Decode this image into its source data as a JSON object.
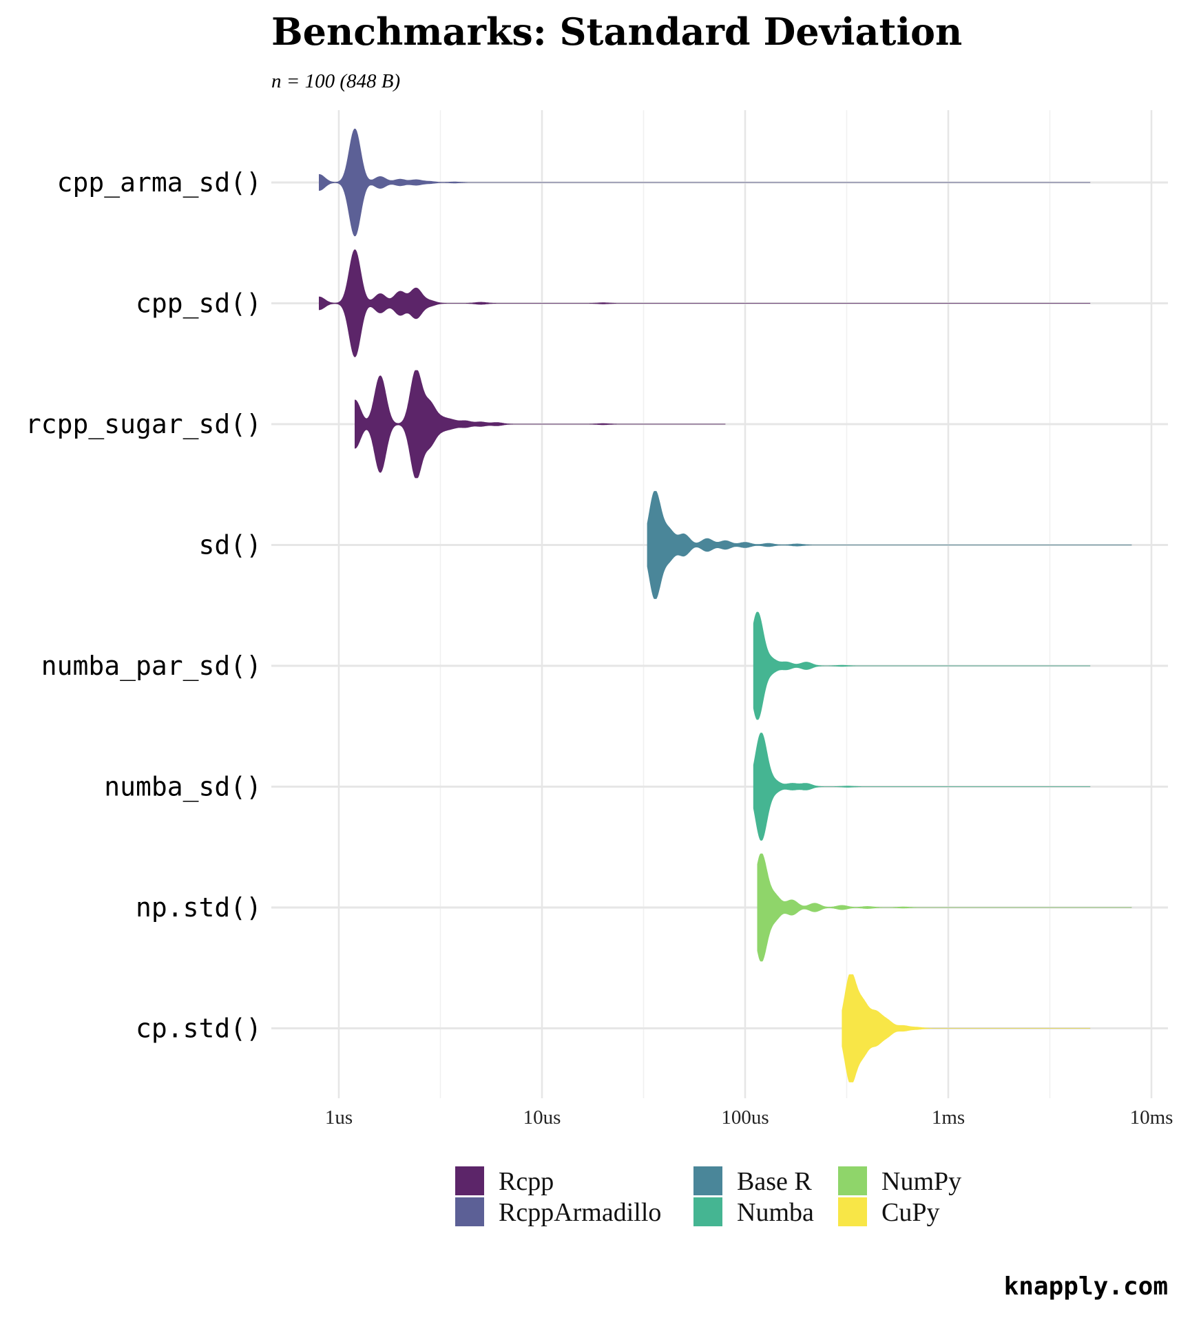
{
  "chart_data": {
    "type": "violin",
    "title": "Benchmarks: Standard Deviation",
    "subtitle": "n = 100 (848 B)",
    "caption": "knapply.com",
    "x_axis": {
      "scale": "log10",
      "unit": "seconds",
      "range": [
        6e-07,
        0.01
      ],
      "ticks": [
        {
          "value": 1e-06,
          "label": "1us"
        },
        {
          "value": 1e-05,
          "label": "10us"
        },
        {
          "value": 0.0001,
          "label": "100us"
        },
        {
          "value": 0.001,
          "label": "1ms"
        },
        {
          "value": 0.01,
          "label": "10ms"
        }
      ]
    },
    "grid": true,
    "legend_position": "bottom",
    "legend": [
      {
        "label": "Rcpp",
        "color": "#5c2569"
      },
      {
        "label": "RcppArmadillo",
        "color": "#5c6096"
      },
      {
        "label": "Base R",
        "color": "#4a8699"
      },
      {
        "label": "Numba",
        "color": "#45b592"
      },
      {
        "label": "NumPy",
        "color": "#8fd56a"
      },
      {
        "label": "CuPy",
        "color": "#f8e647"
      }
    ],
    "series": [
      {
        "label": "cpp_arma_sd()",
        "group": "RcppArmadillo",
        "color": "#5c6096",
        "min": 8e-07,
        "max": 0.005,
        "modes": [
          [
            8e-07,
            0.15
          ],
          [
            1.2e-06,
            1.0
          ],
          [
            1.6e-06,
            0.11
          ],
          [
            2e-06,
            0.06
          ],
          [
            2.4e-06,
            0.05
          ],
          [
            2.8e-06,
            0.02
          ],
          [
            3.7e-06,
            0.01
          ]
        ]
      },
      {
        "label": "cpp_sd()",
        "group": "Rcpp",
        "color": "#5c2569",
        "min": 8e-07,
        "max": 0.005,
        "modes": [
          [
            8e-07,
            0.12
          ],
          [
            1.2e-06,
            1.0
          ],
          [
            1.6e-06,
            0.18
          ],
          [
            2e-06,
            0.22
          ],
          [
            2.4e-06,
            0.28
          ],
          [
            2.8e-06,
            0.05
          ],
          [
            5e-06,
            0.02
          ],
          [
            2e-05,
            0.01
          ]
        ]
      },
      {
        "label": "rcpp_sugar_sd()",
        "group": "Rcpp",
        "color": "#5c2569",
        "min": 1.2e-06,
        "max": 8e-05,
        "modes": [
          [
            1.2e-06,
            0.45
          ],
          [
            1.6e-06,
            0.9
          ],
          [
            2.4e-06,
            1.0
          ],
          [
            2.8e-06,
            0.38
          ],
          [
            3.2e-06,
            0.1
          ],
          [
            3.6e-06,
            0.07
          ],
          [
            4.2e-06,
            0.06
          ],
          [
            5e-06,
            0.04
          ],
          [
            6e-06,
            0.03
          ],
          [
            2e-05,
            0.01
          ]
        ]
      },
      {
        "label": "sd()",
        "group": "Base R",
        "color": "#4a8699",
        "min": 3.3e-05,
        "max": 0.008,
        "modes": [
          [
            3.6e-05,
            1.0
          ],
          [
            4.2e-05,
            0.28
          ],
          [
            5e-05,
            0.2
          ],
          [
            6.5e-05,
            0.12
          ],
          [
            8e-05,
            0.08
          ],
          [
            0.0001,
            0.05
          ],
          [
            0.00013,
            0.03
          ],
          [
            0.00018,
            0.02
          ]
        ]
      },
      {
        "label": "numba_par_sd()",
        "group": "Numba",
        "color": "#45b592",
        "min": 0.00011,
        "max": 0.005,
        "modes": [
          [
            0.000115,
            1.0
          ],
          [
            0.000135,
            0.12
          ],
          [
            0.00016,
            0.07
          ],
          [
            0.0002,
            0.07
          ],
          [
            0.0003,
            0.01
          ]
        ]
      },
      {
        "label": "numba_sd()",
        "group": "Numba",
        "color": "#45b592",
        "min": 0.00011,
        "max": 0.005,
        "modes": [
          [
            0.00012,
            1.0
          ],
          [
            0.00014,
            0.1
          ],
          [
            0.00017,
            0.06
          ],
          [
            0.0002,
            0.06
          ],
          [
            0.00032,
            0.01
          ]
        ]
      },
      {
        "label": "np.std()",
        "group": "NumPy",
        "color": "#8fd56a",
        "min": 0.000115,
        "max": 0.008,
        "modes": [
          [
            0.00012,
            1.0
          ],
          [
            0.00014,
            0.22
          ],
          [
            0.00017,
            0.14
          ],
          [
            0.00022,
            0.08
          ],
          [
            0.0003,
            0.04
          ],
          [
            0.0004,
            0.02
          ],
          [
            0.0006,
            0.01
          ]
        ]
      },
      {
        "label": "cp.std()",
        "group": "CuPy",
        "color": "#f8e647",
        "min": 0.0003,
        "max": 0.005,
        "modes": [
          [
            0.00033,
            1.0
          ],
          [
            0.00038,
            0.45
          ],
          [
            0.00044,
            0.28
          ],
          [
            0.0005,
            0.14
          ],
          [
            0.0006,
            0.05
          ],
          [
            0.0007,
            0.02
          ]
        ]
      }
    ]
  }
}
